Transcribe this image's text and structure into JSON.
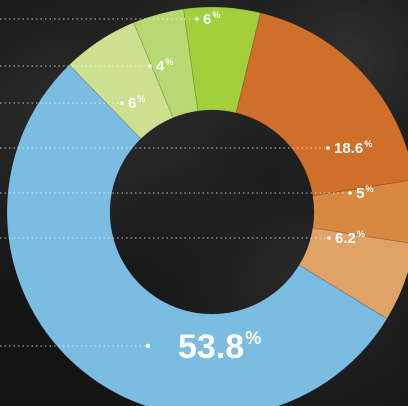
{
  "chart_data": {
    "type": "donut",
    "slices": [
      {
        "value": 6,
        "label": "6",
        "unit": "%",
        "color": "#a3cf3c"
      },
      {
        "value": 18.6,
        "label": "18.6",
        "unit": "%",
        "color": "#cf6f2a"
      },
      {
        "value": 5,
        "label": "5",
        "unit": "%",
        "color": "#d9893f"
      },
      {
        "value": 6.2,
        "label": "6.2",
        "unit": "%",
        "color": "#e0a267"
      },
      {
        "value": 53.8,
        "label": "53.8",
        "unit": "%",
        "color": "#7bbde2"
      },
      {
        "value": 6,
        "label": "6",
        "unit": "%",
        "color": "#cde08f"
      },
      {
        "value": 4,
        "label": "4",
        "unit": "%",
        "color": "#b8d872"
      }
    ],
    "leader_lines": "dotted-left",
    "background": "dark-textured"
  }
}
